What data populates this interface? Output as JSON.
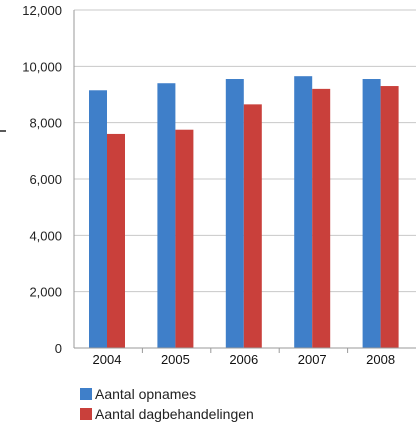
{
  "chart_data": {
    "type": "bar",
    "categories": [
      "2004",
      "2005",
      "2006",
      "2007",
      "2008"
    ],
    "series": [
      {
        "name": "Aantal opnames",
        "color": "#3f7fc9",
        "values": [
          9150,
          9400,
          9550,
          9650,
          9550
        ]
      },
      {
        "name": "Aantal dagbehandelingen",
        "color": "#c9403b",
        "values": [
          7600,
          7750,
          8650,
          9200,
          9300
        ]
      }
    ],
    "yticks": [
      "0",
      "2,000",
      "4,000",
      "6,000",
      "8,000",
      "10,000",
      "12,000"
    ],
    "ylim": [
      0,
      12000
    ],
    "grid": true,
    "legend_position": "bottom-left"
  }
}
